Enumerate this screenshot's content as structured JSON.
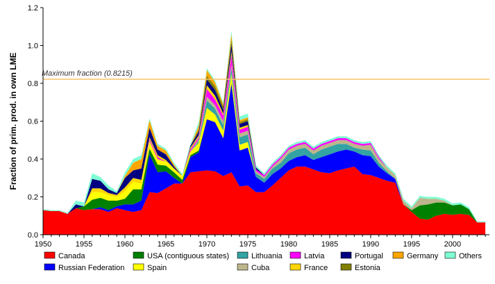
{
  "chart_data": {
    "type": "area",
    "stacked": true,
    "ylabel": "Fraction of prim. prod. in own LME",
    "xlabel": "",
    "ylim": [
      0,
      1.2
    ],
    "xlim": [
      1950,
      2004.5
    ],
    "y_ticks": [
      0,
      0.2,
      0.4,
      0.6,
      0.8,
      1.0,
      1.2
    ],
    "y_tick_labels": [
      "0.0",
      "0.2",
      "0.4",
      "0.6",
      "0.8",
      "1.0",
      "1.2"
    ],
    "x_ticks": [
      1950,
      1955,
      1960,
      1965,
      1970,
      1975,
      1980,
      1985,
      1990,
      1995,
      2000
    ],
    "x_tick_labels": [
      "1950",
      "1955",
      "1960",
      "1965",
      "1970",
      "1975",
      "1980",
      "1985",
      "1990",
      "1995",
      "2000"
    ],
    "reference_line": {
      "value": 0.8215,
      "label": "Maximum fraction (0.8215)",
      "color": "#f5c36b"
    },
    "legend_position": "bottom",
    "x": [
      1950,
      1951,
      1952,
      1953,
      1954,
      1955,
      1956,
      1957,
      1958,
      1959,
      1960,
      1961,
      1962,
      1963,
      1964,
      1965,
      1966,
      1967,
      1968,
      1969,
      1970,
      1971,
      1972,
      1973,
      1974,
      1975,
      1976,
      1977,
      1978,
      1979,
      1980,
      1981,
      1982,
      1983,
      1984,
      1985,
      1986,
      1987,
      1988,
      1989,
      1990,
      1991,
      1992,
      1993,
      1994,
      1995,
      1996,
      1997,
      1998,
      1999,
      2000,
      2001,
      2002,
      2003,
      2004
    ],
    "series": [
      {
        "name": "Canada",
        "color": "#ff0000",
        "values": [
          0.13,
          0.125,
          0.125,
          0.11,
          0.14,
          0.13,
          0.135,
          0.135,
          0.12,
          0.14,
          0.13,
          0.12,
          0.13,
          0.225,
          0.22,
          0.245,
          0.27,
          0.27,
          0.33,
          0.335,
          0.34,
          0.335,
          0.31,
          0.33,
          0.255,
          0.26,
          0.225,
          0.225,
          0.26,
          0.3,
          0.34,
          0.36,
          0.36,
          0.345,
          0.33,
          0.325,
          0.34,
          0.35,
          0.36,
          0.32,
          0.315,
          0.3,
          0.285,
          0.275,
          0.16,
          0.12,
          0.085,
          0.08,
          0.1,
          0.11,
          0.105,
          0.11,
          0.105,
          0.065,
          0.065
        ]
      },
      {
        "name": "Russian Federation",
        "color": "#0000ff",
        "values": [
          0,
          0,
          0,
          0,
          0,
          0,
          0,
          0.01,
          0.01,
          0.01,
          0.03,
          0.04,
          0.05,
          0.2,
          0.11,
          0.09,
          0.03,
          0,
          0.08,
          0.1,
          0.27,
          0.26,
          0.2,
          0.47,
          0.19,
          0.2,
          0.08,
          0.05,
          0.06,
          0.05,
          0.05,
          0.05,
          0.06,
          0.05,
          0.08,
          0.1,
          0.1,
          0.1,
          0.08,
          0.1,
          0.1,
          0.06,
          0.04,
          0.02,
          0,
          0,
          0,
          0,
          0,
          0,
          0,
          0,
          0,
          0,
          0
        ]
      },
      {
        "name": "USA (contiguous states)",
        "color": "#008000",
        "values": [
          0,
          0,
          0,
          0,
          0,
          0.02,
          0.05,
          0.05,
          0.05,
          0.03,
          0.03,
          0.08,
          0.06,
          0.03,
          0.04,
          0.03,
          0.03,
          0.02,
          0.01,
          0.01,
          0,
          0,
          0,
          0,
          0,
          0,
          0,
          0,
          0,
          0,
          0,
          0,
          0,
          0,
          0,
          0,
          0,
          0,
          0,
          0,
          0,
          0,
          0,
          0,
          0,
          0.01,
          0.07,
          0.08,
          0.07,
          0.06,
          0.05,
          0.05,
          0.03,
          0,
          0
        ]
      },
      {
        "name": "Spain",
        "color": "#ffff00",
        "values": [
          0,
          0,
          0,
          0,
          0,
          0,
          0.04,
          0.03,
          0.03,
          0.02,
          0.04,
          0.04,
          0.03,
          0.04,
          0.03,
          0.02,
          0.02,
          0.02,
          0.02,
          0.04,
          0.06,
          0.04,
          0.04,
          0.05,
          0.03,
          0.03,
          0,
          0,
          0,
          0,
          0,
          0,
          0,
          0,
          0,
          0,
          0,
          0,
          0,
          0,
          0,
          0,
          0,
          0,
          0,
          0,
          0,
          0,
          0,
          0,
          0,
          0,
          0,
          0,
          0
        ]
      },
      {
        "name": "Lithuania",
        "color": "#33a3a3",
        "values": [
          0,
          0,
          0,
          0,
          0,
          0,
          0,
          0,
          0,
          0,
          0,
          0,
          0,
          0,
          0,
          0,
          0,
          0,
          0,
          0.01,
          0.04,
          0.03,
          0.03,
          0.03,
          0.04,
          0.04,
          0.02,
          0.02,
          0.03,
          0.03,
          0.04,
          0.04,
          0.04,
          0.03,
          0.04,
          0.04,
          0.04,
          0.03,
          0.02,
          0.03,
          0.03,
          0.02,
          0.01,
          0,
          0,
          0,
          0,
          0,
          0,
          0,
          0,
          0,
          0,
          0,
          0
        ]
      },
      {
        "name": "Cuba",
        "color": "#bdb58c",
        "values": [
          0,
          0,
          0,
          0,
          0,
          0,
          0,
          0,
          0,
          0,
          0,
          0,
          0,
          0,
          0,
          0,
          0,
          0,
          0,
          0.01,
          0.02,
          0.02,
          0.02,
          0.02,
          0.02,
          0.02,
          0.01,
          0.01,
          0.01,
          0.02,
          0.02,
          0.02,
          0.02,
          0.02,
          0.02,
          0.02,
          0.02,
          0.02,
          0.02,
          0.02,
          0.03,
          0.02,
          0.02,
          0.02,
          0.02,
          0.01,
          0.04,
          0.03,
          0.02,
          0.01,
          0,
          0,
          0,
          0,
          0
        ]
      },
      {
        "name": "Latvia",
        "color": "#ff00ff",
        "values": [
          0,
          0,
          0,
          0,
          0,
          0,
          0,
          0,
          0,
          0,
          0,
          0,
          0,
          0.01,
          0.01,
          0,
          0,
          0,
          0.01,
          0.01,
          0.04,
          0.03,
          0.03,
          0.05,
          0.02,
          0.02,
          0.01,
          0.01,
          0.01,
          0.01,
          0.01,
          0.01,
          0.01,
          0.01,
          0.01,
          0.01,
          0.01,
          0.01,
          0.01,
          0.01,
          0.01,
          0.01,
          0,
          0,
          0,
          0,
          0,
          0,
          0,
          0,
          0,
          0,
          0,
          0,
          0
        ]
      },
      {
        "name": "France",
        "color": "#ffd700",
        "values": [
          0,
          0,
          0,
          0,
          0,
          0,
          0.02,
          0.02,
          0.01,
          0.01,
          0.02,
          0.02,
          0.02,
          0.01,
          0.01,
          0.01,
          0,
          0,
          0.01,
          0.01,
          0.02,
          0.02,
          0.01,
          0.02,
          0.01,
          0.01,
          0,
          0,
          0,
          0,
          0,
          0,
          0,
          0,
          0,
          0,
          0,
          0,
          0,
          0,
          0,
          0,
          0,
          0,
          0,
          0,
          0,
          0,
          0,
          0,
          0,
          0,
          0,
          0,
          0
        ]
      },
      {
        "name": "Portugal",
        "color": "#000080",
        "values": [
          0,
          0,
          0,
          0,
          0.02,
          0,
          0.05,
          0.04,
          0.02,
          0.01,
          0.05,
          0.04,
          0.06,
          0.05,
          0.03,
          0.03,
          0.01,
          0,
          0.01,
          0.02,
          0.03,
          0.03,
          0.02,
          0.04,
          0.02,
          0.02,
          0.01,
          0,
          0,
          0,
          0,
          0,
          0,
          0,
          0,
          0,
          0,
          0,
          0,
          0,
          0,
          0,
          0,
          0,
          0,
          0,
          0,
          0,
          0,
          0,
          0,
          0,
          0,
          0,
          0
        ]
      },
      {
        "name": "Estonia",
        "color": "#808000",
        "values": [
          0,
          0,
          0,
          0,
          0,
          0,
          0,
          0,
          0,
          0,
          0,
          0,
          0,
          0,
          0,
          0,
          0,
          0,
          0,
          0.01,
          0.02,
          0.02,
          0.02,
          0.02,
          0.01,
          0.01,
          0,
          0,
          0,
          0,
          0,
          0,
          0,
          0,
          0,
          0,
          0,
          0,
          0,
          0,
          0,
          0,
          0,
          0,
          0,
          0,
          0,
          0,
          0,
          0,
          0,
          0,
          0,
          0,
          0
        ]
      },
      {
        "name": "Germany",
        "color": "#ffa500",
        "values": [
          0,
          0,
          0,
          0,
          0,
          0,
          0,
          0,
          0,
          0,
          0.01,
          0.04,
          0.05,
          0.04,
          0.02,
          0.02,
          0.01,
          0,
          0,
          0.02,
          0.03,
          0.02,
          0.01,
          0.03,
          0.01,
          0.01,
          0,
          0,
          0,
          0,
          0,
          0,
          0,
          0,
          0,
          0,
          0,
          0,
          0,
          0,
          0,
          0,
          0,
          0,
          0,
          0,
          0,
          0,
          0,
          0,
          0,
          0,
          0,
          0,
          0
        ]
      },
      {
        "name": "Others",
        "color": "#7fffd4",
        "values": [
          0.005,
          0.005,
          0.005,
          0.005,
          0.02,
          0.02,
          0.03,
          0.02,
          0.02,
          0.01,
          0.02,
          0.02,
          0.02,
          0.01,
          0.01,
          0.01,
          0.01,
          0.01,
          0.01,
          0.02,
          0.01,
          0.01,
          0.01,
          0.02,
          0.02,
          0.02,
          0.01,
          0.01,
          0.01,
          0.01,
          0.01,
          0.01,
          0.01,
          0.01,
          0.01,
          0.01,
          0.01,
          0.01,
          0.01,
          0.01,
          0.01,
          0.01,
          0.01,
          0.01,
          0.01,
          0.01,
          0.01,
          0.01,
          0.01,
          0.01,
          0.01,
          0.01,
          0.01,
          0.005,
          0.005
        ]
      }
    ],
    "legend_order": [
      "Canada",
      "USA (contiguous states)",
      "Lithuania",
      "Latvia",
      "Portugal",
      "Germany",
      "Others",
      "Russian Federation",
      "Spain",
      "Cuba",
      "France",
      "Estonia"
    ]
  }
}
